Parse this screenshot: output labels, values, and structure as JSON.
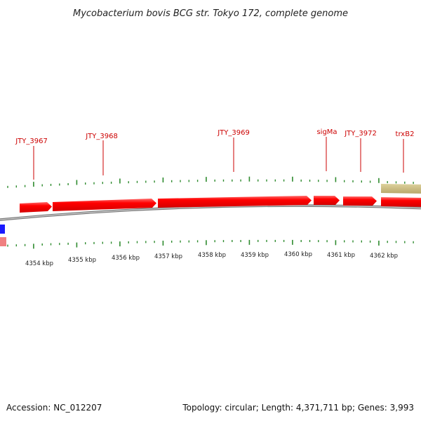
{
  "title": "Mycobacterium bovis BCG str. Tokyo 172, complete genome",
  "footer": {
    "accession": "Accession: NC_012207",
    "summary": "Topology: circular; Length: 4,371,711 bp; Genes: 3,993"
  },
  "colors": {
    "forward_gene": "#ff0000",
    "misc_feature": "#c8b87a",
    "reverse_feature": "#1a1aff",
    "reverse_gene_light": "#f08080",
    "backbone": "#888888",
    "tick": "#2e8b2e",
    "label": "#cc0000"
  },
  "genes": [
    {
      "label": "JTY_3967"
    },
    {
      "label": "JTY_3968"
    },
    {
      "label": "JTY_3969"
    },
    {
      "label": "sigMa"
    },
    {
      "label": "JTY_3972"
    },
    {
      "label": "trxB2"
    }
  ],
  "scale": {
    "labels": [
      "4354 kbp",
      "4355 kbp",
      "4356 kbp",
      "4357 kbp",
      "4358 kbp",
      "4359 kbp",
      "4360 kbp",
      "4361 kbp",
      "4362 kbp"
    ]
  }
}
